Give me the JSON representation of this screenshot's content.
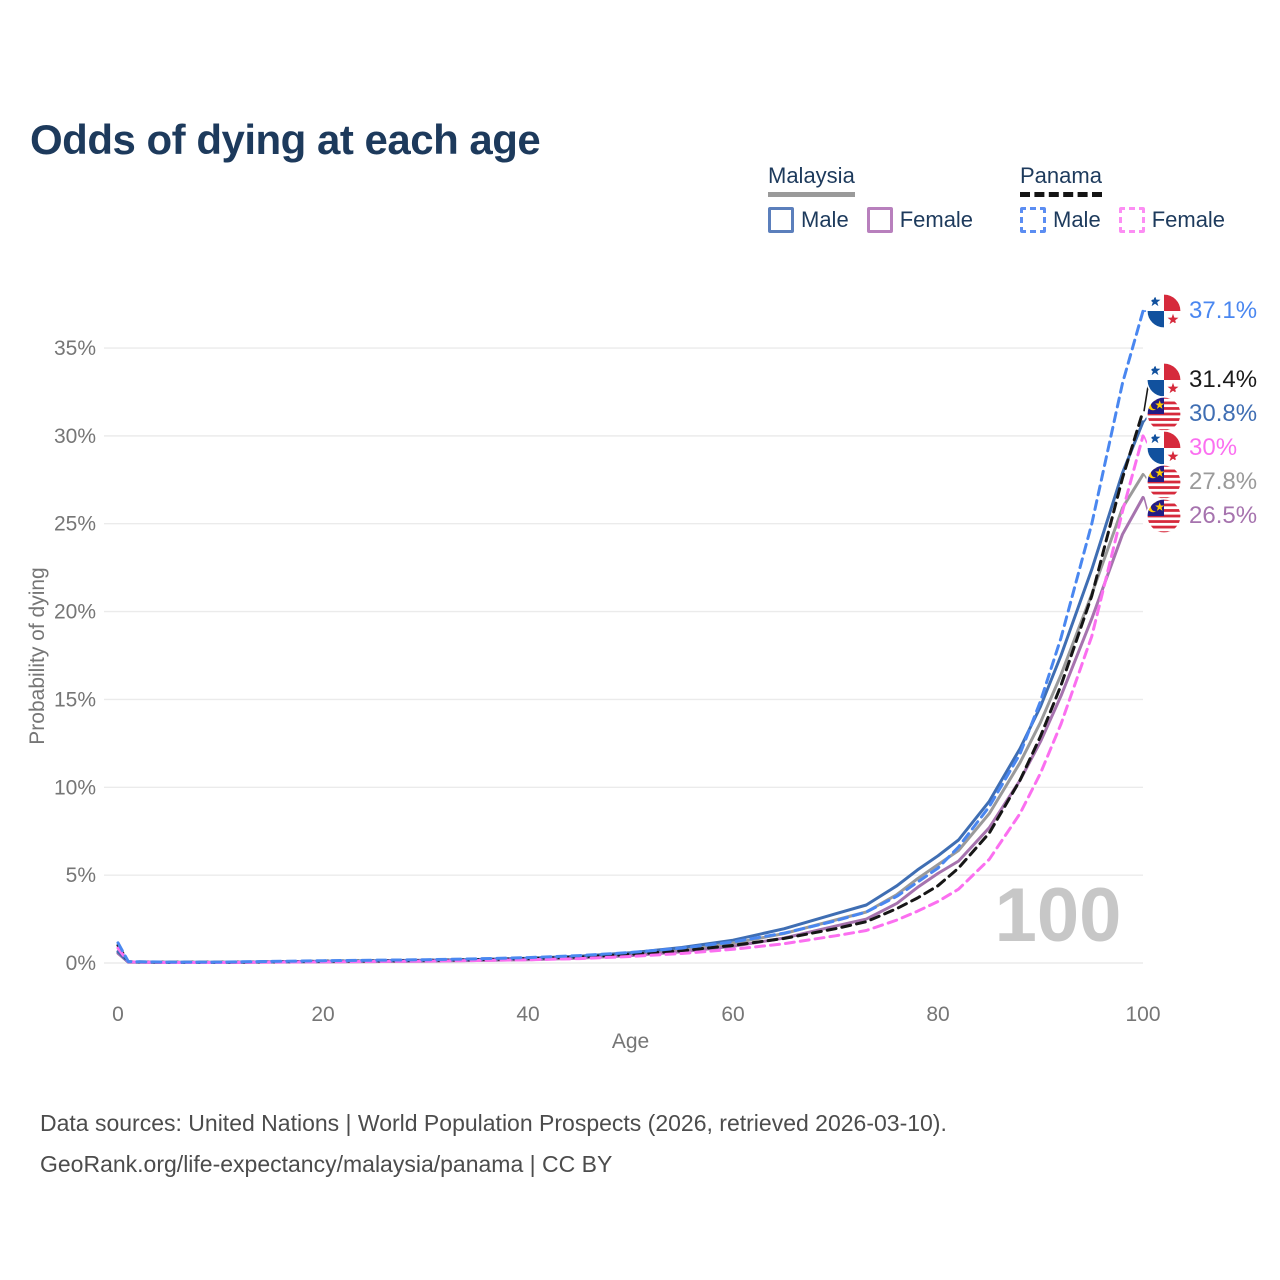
{
  "title": "Odds of dying at each age",
  "watermark": "100",
  "legend": {
    "groups": [
      {
        "country": "Malaysia",
        "line_style": "solid",
        "underline_color": "#9a9a9a",
        "items": [
          {
            "label": "Male",
            "color": "#5b7fbc"
          },
          {
            "label": "Female",
            "color": "#b880bd"
          }
        ]
      },
      {
        "country": "Panama",
        "line_style": "dashed",
        "underline_color": "#141414",
        "items": [
          {
            "label": "Male",
            "color": "#5b8df2"
          },
          {
            "label": "Female",
            "color": "#fc8df3"
          }
        ]
      }
    ]
  },
  "axes": {
    "x_label": "Age",
    "y_label": "Probability of dying",
    "x_ticks": [
      "0",
      "20",
      "40",
      "60",
      "80",
      "100"
    ],
    "y_ticks": [
      "0%",
      "5%",
      "10%",
      "15%",
      "20%",
      "25%",
      "30%",
      "35%"
    ]
  },
  "end_labels": [
    {
      "text": "37.1%",
      "value_percent": 37.1,
      "color": "#4a87f0",
      "flag": "panama"
    },
    {
      "text": "31.4%",
      "value_percent": 31.4,
      "color": "#1a1a1a",
      "flag": "panama"
    },
    {
      "text": "30.8%",
      "value_percent": 30.8,
      "color": "#3f6eb3",
      "flag": "malaysia"
    },
    {
      "text": "30%",
      "value_percent": 30.0,
      "color": "#fb6ff0",
      "flag": "panama"
    },
    {
      "text": "27.8%",
      "value_percent": 27.8,
      "color": "#9a9a9a",
      "flag": "malaysia"
    },
    {
      "text": "26.5%",
      "value_percent": 26.5,
      "color": "#a673ae",
      "flag": "malaysia"
    }
  ],
  "footer": {
    "line1": "Data sources: United Nations | World Population Prospects (2026, retrieved 2026-03-10).",
    "line2": "GeoRank.org/life-expectancy/malaysia/panama | CC BY"
  },
  "chart_data": {
    "type": "line",
    "title": "Odds of dying at each age",
    "xlabel": "Age",
    "ylabel": "Probability of dying",
    "xlim": [
      0,
      100
    ],
    "ylim_percent": [
      0,
      37.5
    ],
    "grid": "horizontal",
    "legend_position": "top-right",
    "x_ages": [
      0,
      1,
      5,
      10,
      15,
      20,
      25,
      30,
      35,
      40,
      45,
      50,
      55,
      60,
      65,
      70,
      73,
      76,
      78,
      80,
      82,
      85,
      88,
      90,
      92,
      95,
      98,
      100
    ],
    "series": [
      {
        "name": "Malaysia Total",
        "country": "Malaysia",
        "sex": "Both",
        "color": "#9a9a9a",
        "dash": false,
        "values_percent": [
          0.6,
          0.05,
          0.03,
          0.03,
          0.06,
          0.08,
          0.1,
          0.13,
          0.17,
          0.23,
          0.33,
          0.5,
          0.76,
          1.12,
          1.68,
          2.45,
          2.9,
          3.9,
          4.8,
          5.6,
          6.4,
          8.5,
          11.4,
          13.7,
          16.4,
          21.0,
          25.9,
          27.8
        ]
      },
      {
        "name": "Malaysia Female",
        "country": "Malaysia",
        "sex": "Female",
        "color": "#a673ae",
        "dash": false,
        "values_percent": [
          0.55,
          0.05,
          0.03,
          0.03,
          0.05,
          0.06,
          0.08,
          0.1,
          0.14,
          0.19,
          0.28,
          0.42,
          0.64,
          0.95,
          1.42,
          2.1,
          2.5,
          3.4,
          4.3,
          5.1,
          5.8,
          7.7,
          10.4,
          12.6,
          15.2,
          19.6,
          24.4,
          26.5
        ]
      },
      {
        "name": "Malaysia Male",
        "country": "Malaysia",
        "sex": "Male",
        "color": "#3f6eb3",
        "dash": false,
        "values_percent": [
          0.65,
          0.06,
          0.04,
          0.04,
          0.07,
          0.1,
          0.13,
          0.16,
          0.2,
          0.27,
          0.38,
          0.58,
          0.88,
          1.3,
          1.95,
          2.8,
          3.3,
          4.4,
          5.3,
          6.1,
          7.0,
          9.2,
          12.2,
          14.6,
          17.5,
          22.4,
          27.9,
          30.8
        ]
      },
      {
        "name": "Panama Total",
        "country": "Panama",
        "sex": "Both",
        "color": "#161616",
        "dash": true,
        "values_percent": [
          1.0,
          0.07,
          0.04,
          0.04,
          0.07,
          0.1,
          0.12,
          0.15,
          0.19,
          0.25,
          0.34,
          0.49,
          0.7,
          1.0,
          1.4,
          1.95,
          2.35,
          3.1,
          3.7,
          4.4,
          5.4,
          7.4,
          10.4,
          12.9,
          15.8,
          20.9,
          27.6,
          31.4
        ]
      },
      {
        "name": "Panama Female",
        "country": "Panama",
        "sex": "Female",
        "color": "#fb6ff0",
        "dash": true,
        "values_percent": [
          0.85,
          0.06,
          0.03,
          0.03,
          0.05,
          0.07,
          0.09,
          0.11,
          0.14,
          0.18,
          0.25,
          0.37,
          0.54,
          0.78,
          1.1,
          1.55,
          1.85,
          2.45,
          2.95,
          3.5,
          4.2,
          5.9,
          8.5,
          10.8,
          13.6,
          18.6,
          25.7,
          30.0
        ]
      },
      {
        "name": "Panama Male",
        "country": "Panama",
        "sex": "Male",
        "color": "#4a87f0",
        "dash": true,
        "values_percent": [
          1.15,
          0.08,
          0.05,
          0.05,
          0.09,
          0.13,
          0.16,
          0.19,
          0.24,
          0.31,
          0.42,
          0.6,
          0.85,
          1.2,
          1.7,
          2.4,
          2.9,
          3.8,
          4.6,
          5.4,
          6.6,
          8.9,
          11.9,
          14.9,
          18.5,
          25.0,
          33.0,
          37.1
        ]
      }
    ]
  }
}
